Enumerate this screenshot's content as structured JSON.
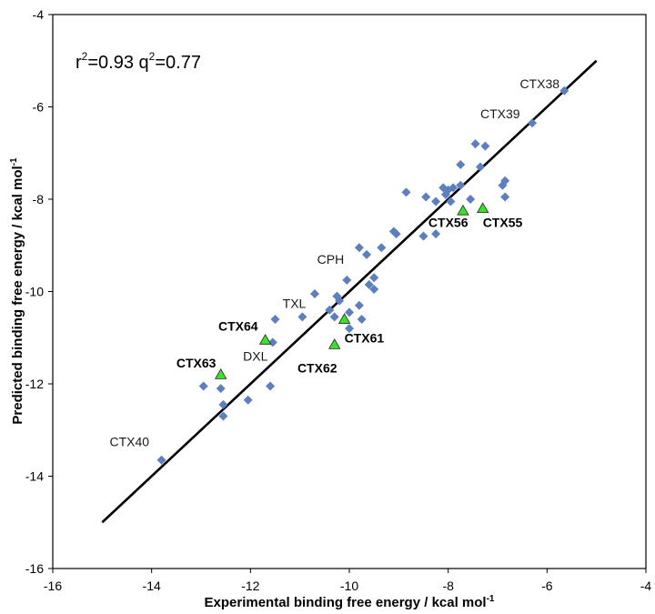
{
  "chart_data": {
    "type": "scatter",
    "xlabel": "Experimental binding free energy / kcal mol",
    "xlabel_sup": "-1",
    "ylabel": "Predicted binding free energy / kcal mol",
    "ylabel_sup": "-1",
    "xlim": [
      -16,
      -4
    ],
    "ylim": [
      -16,
      -4
    ],
    "x_ticks": [
      "-16",
      "-14",
      "-12",
      "-10",
      "-8",
      "-6",
      "-4"
    ],
    "y_ticks": [
      "-4",
      "-6",
      "-8",
      "-10",
      "-12",
      "-14",
      "-16"
    ],
    "grid": false,
    "stats": {
      "r_base": "r",
      "r_sup": "2",
      "r_val": "=0.93 ",
      "q_base": "q",
      "q_sup": "2",
      "q_val": "=0.77"
    },
    "fit_line": {
      "x": [
        -15.0,
        -5.0
      ],
      "y": [
        -15.0,
        -5.0
      ]
    },
    "series": [
      {
        "marker": "diamond",
        "color": "#5b7fbf",
        "points": [
          {
            "x": -5.65,
            "y": -5.65
          },
          {
            "x": -6.3,
            "y": -6.35
          },
          {
            "x": -7.45,
            "y": -6.8
          },
          {
            "x": -7.25,
            "y": -6.85
          },
          {
            "x": -7.35,
            "y": -7.3
          },
          {
            "x": -7.75,
            "y": -7.25
          },
          {
            "x": -6.85,
            "y": -7.6
          },
          {
            "x": -6.9,
            "y": -7.7
          },
          {
            "x": -6.85,
            "y": -7.95
          },
          {
            "x": -7.55,
            "y": -8.0
          },
          {
            "x": -7.75,
            "y": -7.7
          },
          {
            "x": -7.9,
            "y": -7.75
          },
          {
            "x": -8.0,
            "y": -7.8
          },
          {
            "x": -8.05,
            "y": -7.9
          },
          {
            "x": -8.1,
            "y": -7.75
          },
          {
            "x": -7.95,
            "y": -8.05
          },
          {
            "x": -8.25,
            "y": -8.05
          },
          {
            "x": -8.45,
            "y": -7.95
          },
          {
            "x": -8.85,
            "y": -7.85
          },
          {
            "x": -8.25,
            "y": -8.75
          },
          {
            "x": -8.5,
            "y": -8.8
          },
          {
            "x": -9.05,
            "y": -8.75
          },
          {
            "x": -9.1,
            "y": -8.7
          },
          {
            "x": -9.35,
            "y": -9.05
          },
          {
            "x": -9.65,
            "y": -9.2
          },
          {
            "x": -9.8,
            "y": -9.05
          },
          {
            "x": -10.05,
            "y": -9.75
          },
          {
            "x": -9.5,
            "y": -9.7
          },
          {
            "x": -9.6,
            "y": -9.85
          },
          {
            "x": -9.5,
            "y": -9.95
          },
          {
            "x": -10.25,
            "y": -10.1
          },
          {
            "x": -10.2,
            "y": -10.2
          },
          {
            "x": -10.7,
            "y": -10.05
          },
          {
            "x": -10.4,
            "y": -10.4
          },
          {
            "x": -10.3,
            "y": -10.55
          },
          {
            "x": -10.0,
            "y": -10.45
          },
          {
            "x": -9.8,
            "y": -10.3
          },
          {
            "x": -9.75,
            "y": -10.6
          },
          {
            "x": -10.0,
            "y": -10.8
          },
          {
            "x": -10.95,
            "y": -10.55
          },
          {
            "x": -11.5,
            "y": -10.6
          },
          {
            "x": -11.55,
            "y": -11.1
          },
          {
            "x": -11.6,
            "y": -12.05
          },
          {
            "x": -12.05,
            "y": -12.35
          },
          {
            "x": -12.6,
            "y": -12.1
          },
          {
            "x": -12.95,
            "y": -12.05
          },
          {
            "x": -12.55,
            "y": -12.45
          },
          {
            "x": -12.55,
            "y": -12.7
          },
          {
            "x": -13.8,
            "y": -13.65
          }
        ]
      },
      {
        "marker": "triangle",
        "color": "#39e32a",
        "points": [
          {
            "x": -12.6,
            "y": -11.8
          },
          {
            "x": -11.7,
            "y": -11.05
          },
          {
            "x": -10.1,
            "y": -10.6
          },
          {
            "x": -10.3,
            "y": -11.15
          },
          {
            "x": -7.7,
            "y": -8.25
          },
          {
            "x": -7.3,
            "y": -8.2
          }
        ]
      }
    ],
    "annotations": [
      {
        "text": "CTX38",
        "x": -6.55,
        "y": -5.6,
        "bold": false,
        "anchor": "start"
      },
      {
        "text": "CTX39",
        "x": -7.35,
        "y": -6.25,
        "bold": false,
        "anchor": "start"
      },
      {
        "text": "CTX56",
        "x": -8.4,
        "y": -8.6,
        "bold": true,
        "anchor": "start"
      },
      {
        "text": "CTX55",
        "x": -7.3,
        "y": -8.6,
        "bold": true,
        "anchor": "start"
      },
      {
        "text": "CPH",
        "x": -10.65,
        "y": -9.4,
        "bold": false,
        "anchor": "start"
      },
      {
        "text": "TXL",
        "x": -11.35,
        "y": -10.35,
        "bold": false,
        "anchor": "start"
      },
      {
        "text": "CTX64",
        "x": -12.65,
        "y": -10.85,
        "bold": true,
        "anchor": "start"
      },
      {
        "text": "DXL",
        "x": -12.15,
        "y": -11.5,
        "bold": false,
        "anchor": "start"
      },
      {
        "text": "CTX61",
        "x": -10.1,
        "y": -11.1,
        "bold": true,
        "anchor": "start"
      },
      {
        "text": "CTX62",
        "x": -11.05,
        "y": -11.75,
        "bold": true,
        "anchor": "start"
      },
      {
        "text": "CTX63",
        "x": -13.5,
        "y": -11.65,
        "bold": true,
        "anchor": "start"
      },
      {
        "text": "CTX40",
        "x": -14.85,
        "y": -13.35,
        "bold": false,
        "anchor": "start"
      }
    ]
  }
}
